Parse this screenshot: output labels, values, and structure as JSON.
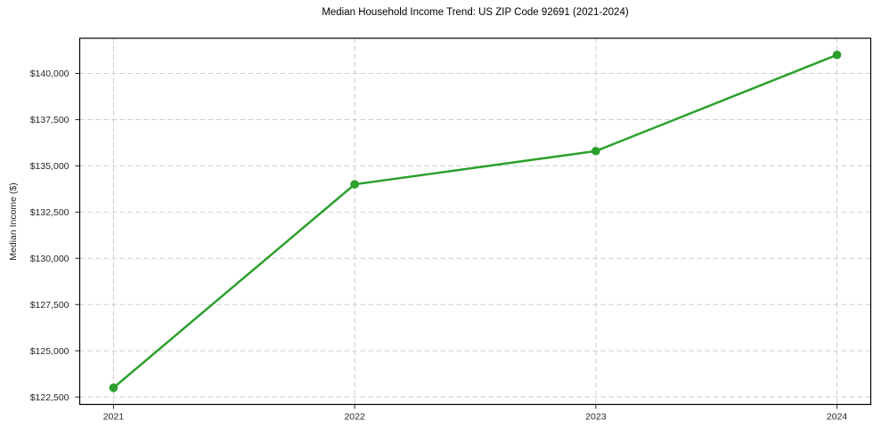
{
  "chart_data": {
    "type": "line",
    "title": "Median Household Income Trend: US ZIP Code 92691 (2021-2024)",
    "xlabel": "",
    "ylabel": "Median Income ($)",
    "x": [
      2021,
      2022,
      2023,
      2024
    ],
    "xtick_labels": [
      "2021",
      "2022",
      "2023",
      "2024"
    ],
    "series": [
      {
        "name": "Median Household Income",
        "values": [
          123000,
          134000,
          135800,
          141000
        ]
      }
    ],
    "ytick_values": [
      122500,
      125000,
      127500,
      130000,
      132500,
      135000,
      137500,
      140000
    ],
    "ytick_labels": [
      "$122,500",
      "$125,000",
      "$127,500",
      "$130,000",
      "$132,500",
      "$135,000",
      "$137,500",
      "$140,000"
    ],
    "xlim": [
      2020.86,
      2024.14
    ],
    "ylim": [
      122100,
      141900
    ],
    "grid": true,
    "legend": "none",
    "line_color": "#2ca02c",
    "marker": "circle",
    "marker_radius": 4.8,
    "line_width": 2.5
  },
  "colors": {
    "line": "#2ca02c",
    "grid": "#cdcdcd",
    "frame": "#000000",
    "tick_text": "#262626",
    "background": "#ffffff"
  }
}
